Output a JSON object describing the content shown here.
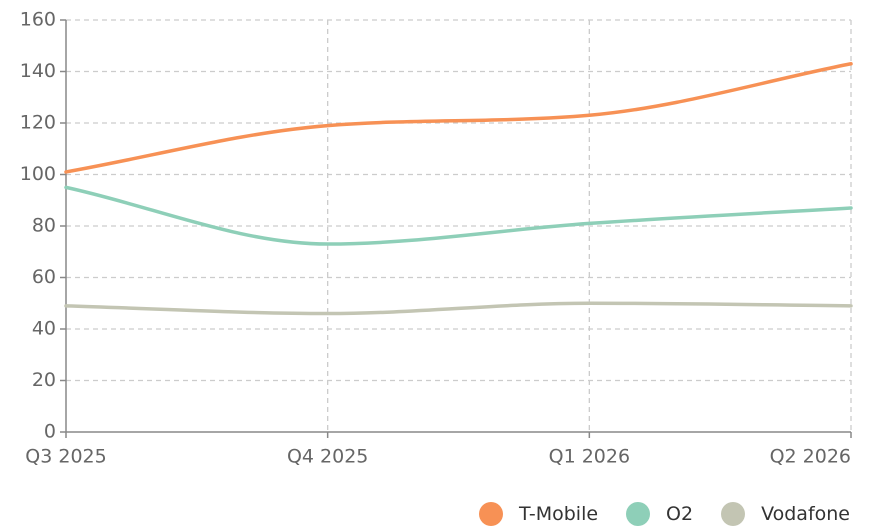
{
  "chart_data": {
    "type": "line",
    "categories": [
      "Q3 2025",
      "Q4 2025",
      "Q1 2026",
      "Q2 2026"
    ],
    "series": [
      {
        "name": "T-Mobile",
        "color": "#f79155",
        "values": [
          101,
          119,
          123,
          143
        ]
      },
      {
        "name": "O2",
        "color": "#8ecfb8",
        "values": [
          95,
          73,
          81,
          87
        ]
      },
      {
        "name": "Vodafone",
        "color": "#c3c5b3",
        "values": [
          49,
          46,
          50,
          49
        ]
      }
    ],
    "ylim": [
      0,
      160
    ],
    "yticks": [
      0,
      20,
      40,
      60,
      80,
      100,
      120,
      140,
      160
    ],
    "grid": true,
    "legend": "bottom-right"
  }
}
